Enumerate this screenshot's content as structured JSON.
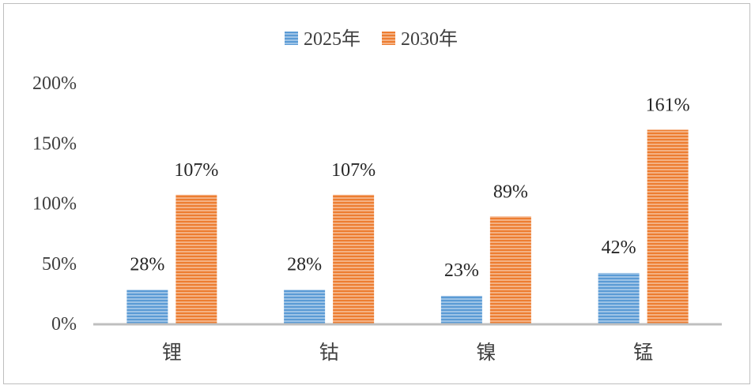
{
  "chart_data": {
    "type": "bar",
    "categories": [
      "锂",
      "钴",
      "镍",
      "锰"
    ],
    "series": [
      {
        "name": "2025年",
        "values": [
          28,
          28,
          23,
          42
        ],
        "labels": [
          "28%",
          "28%",
          "23%",
          "42%"
        ],
        "color": "#5b9bd5"
      },
      {
        "name": "2030年",
        "values": [
          107,
          107,
          89,
          161
        ],
        "labels": [
          "107%",
          "107%",
          "89%",
          "161%"
        ],
        "color": "#ed7d31"
      }
    ],
    "ylim": [
      0,
      200
    ],
    "yticks": [
      "0%",
      "50%",
      "100%",
      "150%",
      "200%"
    ],
    "grid": false,
    "legend": "top",
    "axis_color": "#bfbfbf"
  }
}
